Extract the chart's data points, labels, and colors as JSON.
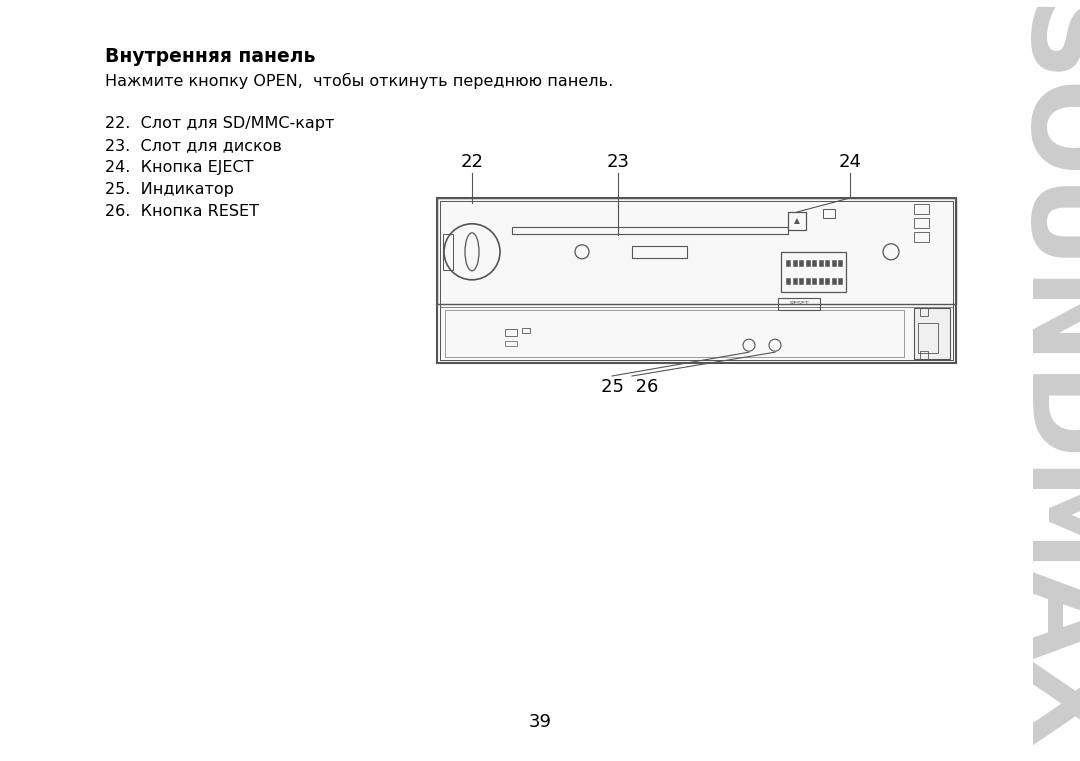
{
  "bg_color": "#ffffff",
  "title_text": "Внутренняя панель",
  "subtitle_text": "Нажмите кнопку OPEN,  чтобы откинуть переднюю панель.",
  "items": [
    "22.  Слот для SD/MMC-карт",
    "23.  Слот для дисков",
    "24.  Кнопка EJECT",
    "25.  Индикатор",
    "26.  Кнопка RESET"
  ],
  "page_number": "39",
  "soundmax_color": "#cccccc",
  "diagram_color": "#555555",
  "text_color": "#000000"
}
